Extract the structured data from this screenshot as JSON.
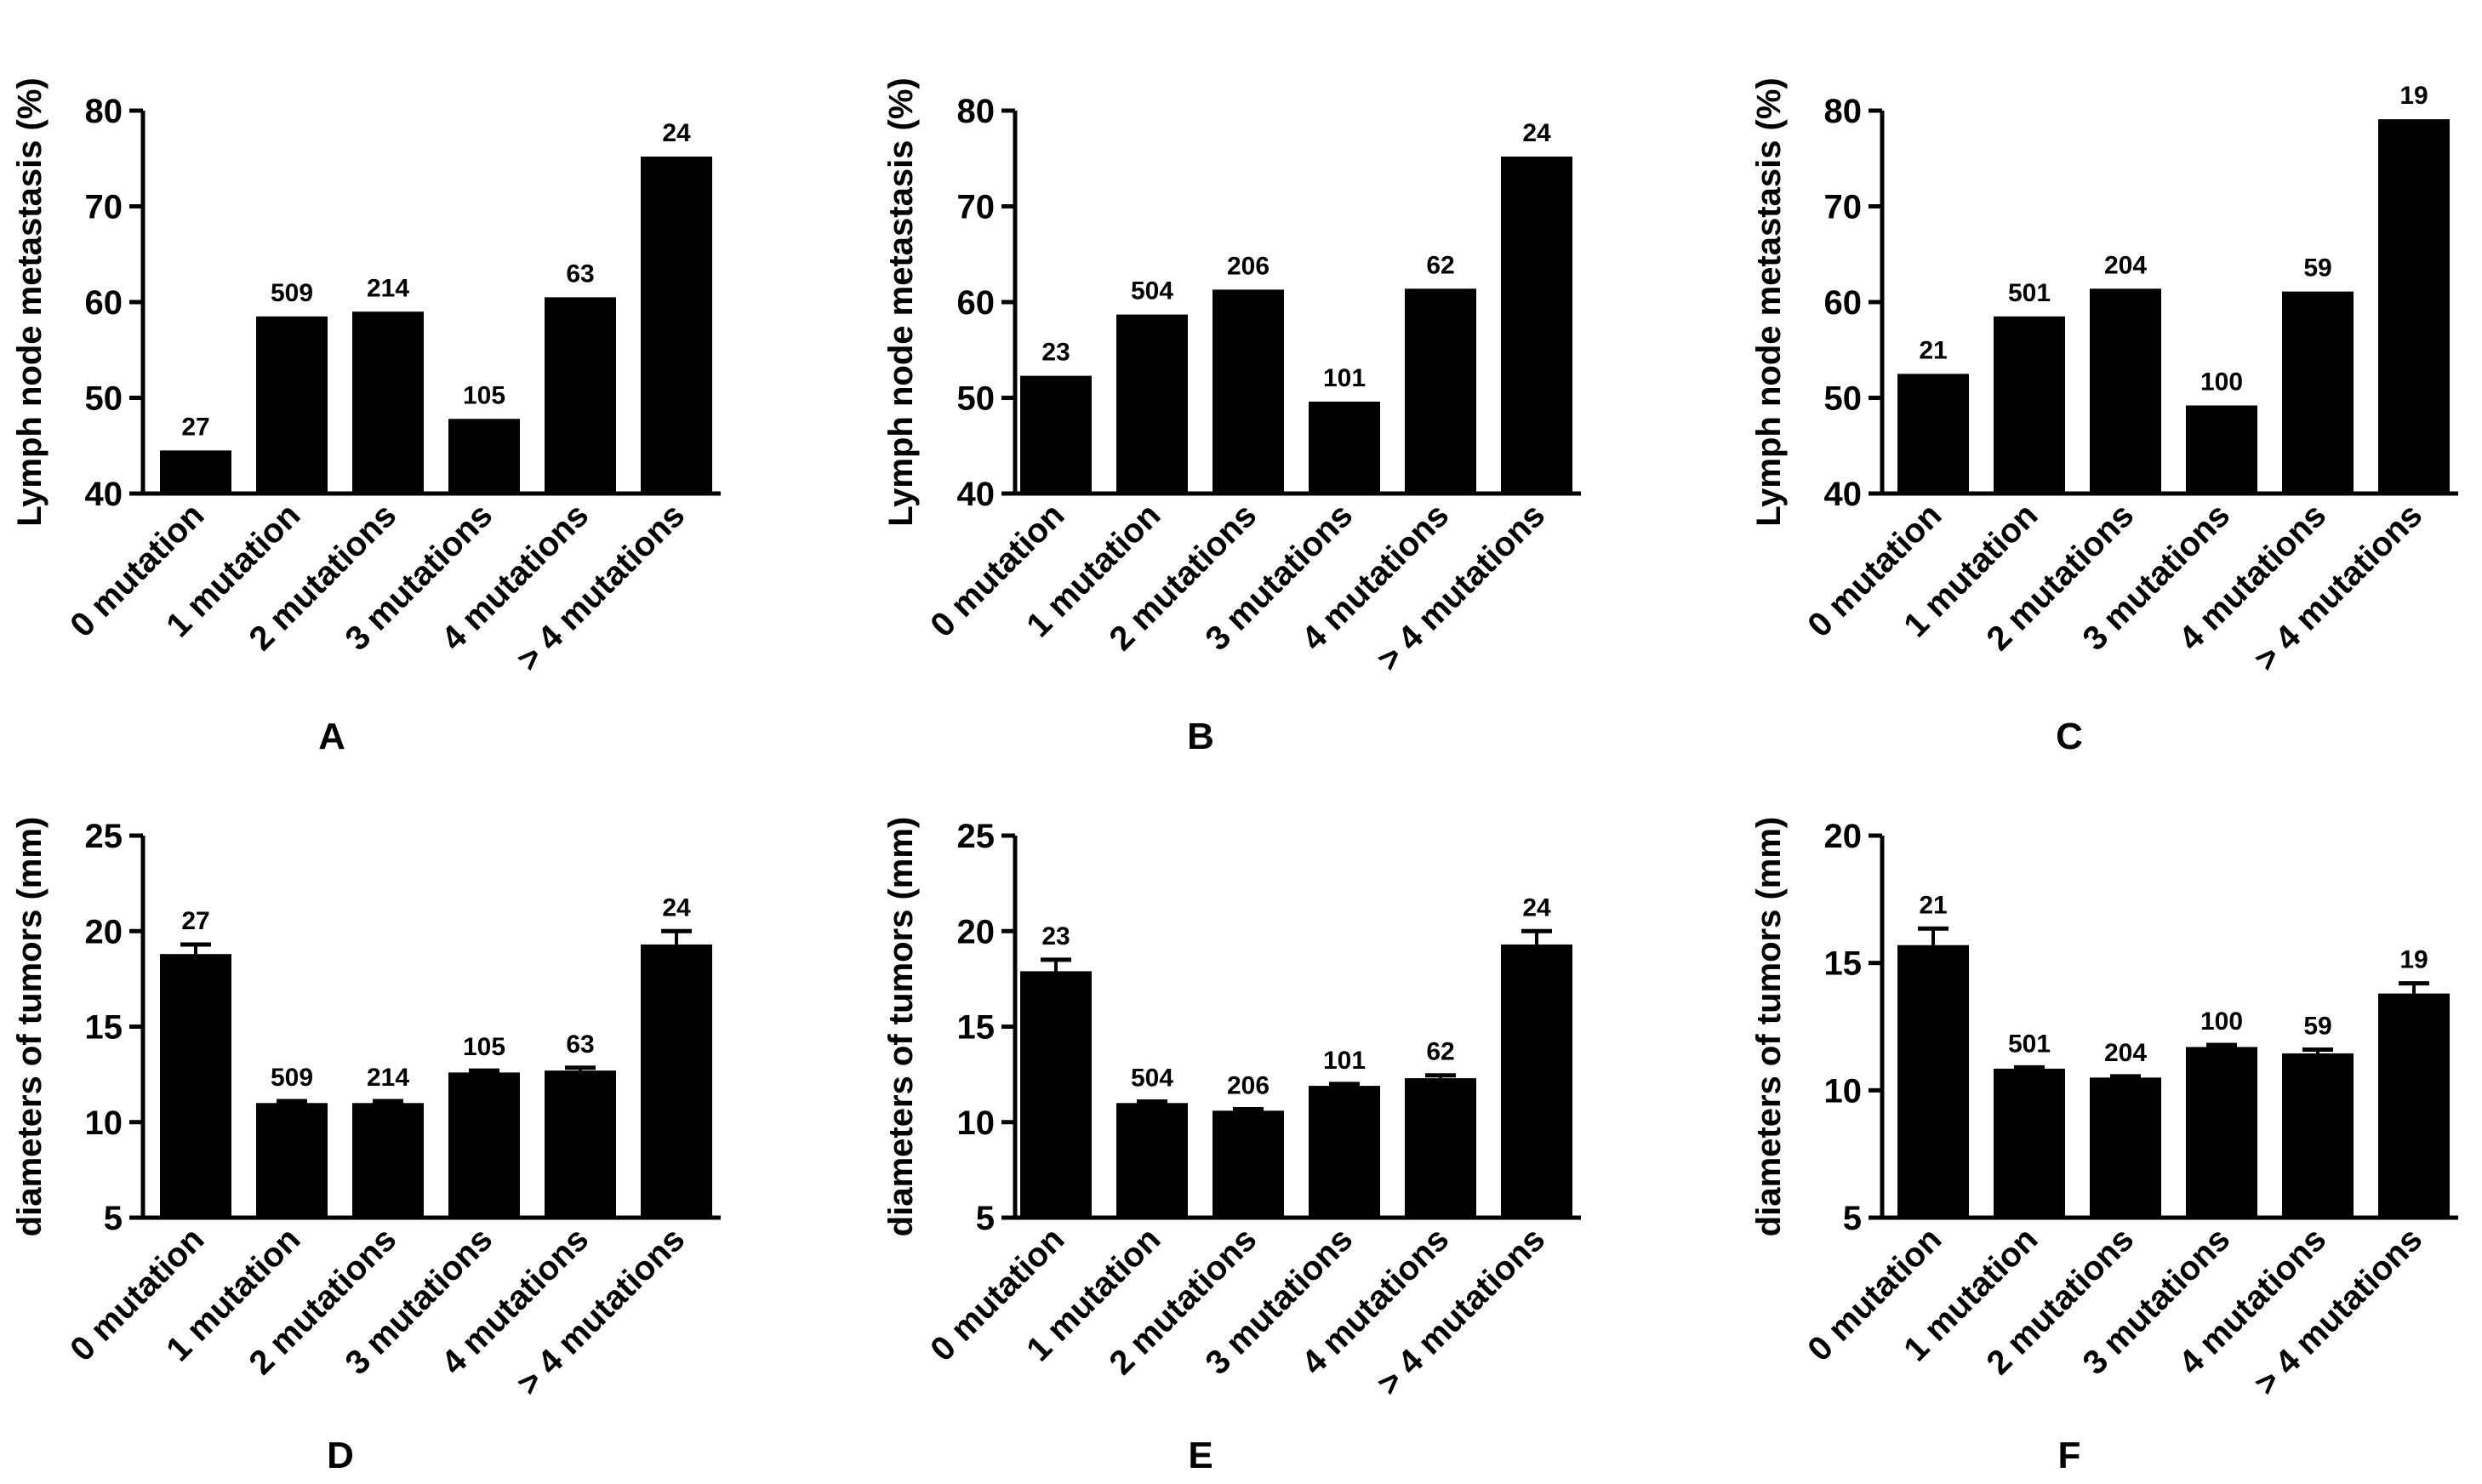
{
  "chart_data": [
    {
      "panel": "A",
      "type": "bar",
      "ylabel": "Lymph node metastasis (%)",
      "ylim": [
        40,
        80
      ],
      "yticks": [
        40,
        50,
        60,
        70,
        80
      ],
      "categories": [
        "0 mutation",
        "1 mutation",
        "2 mutations",
        "3 mutations",
        "4 mutations",
        "> 4 mutations"
      ],
      "values": [
        44.5,
        58.5,
        59.0,
        47.8,
        60.5,
        75.2
      ],
      "labels": [
        "27",
        "509",
        "214",
        "105",
        "63",
        "24"
      ]
    },
    {
      "panel": "B",
      "type": "bar",
      "ylabel": "Lymph node metastasis (%)",
      "ylim": [
        40,
        80
      ],
      "yticks": [
        40,
        50,
        60,
        70,
        80
      ],
      "categories": [
        "0 mutation",
        "1 mutation",
        "2 mutations",
        "3 mutations",
        "4 mutations",
        "> 4 mutations"
      ],
      "values": [
        52.3,
        58.7,
        61.3,
        49.6,
        61.4,
        75.2
      ],
      "labels": [
        "23",
        "504",
        "206",
        "101",
        "62",
        "24"
      ]
    },
    {
      "panel": "C",
      "type": "bar",
      "ylabel": "Lymph node metastasis (%)",
      "ylim": [
        40,
        80
      ],
      "yticks": [
        40,
        50,
        60,
        70,
        80
      ],
      "categories": [
        "0 mutation",
        "1 mutation",
        "2 mutations",
        "3 mutations",
        "4 mutations",
        "> 4 mutations"
      ],
      "values": [
        52.5,
        58.5,
        61.4,
        49.2,
        61.1,
        79.1
      ],
      "labels": [
        "21",
        "501",
        "204",
        "100",
        "59",
        "19"
      ]
    },
    {
      "panel": "D",
      "type": "bar",
      "ylabel": "diameters  of tumors (mm)",
      "ylim": [
        5,
        25
      ],
      "yticks": [
        5,
        10,
        15,
        20,
        25
      ],
      "categories": [
        "0 mutation",
        "1 mutation",
        "2 mutations",
        "3 mutations",
        "4 mutations",
        "> 4 mutations"
      ],
      "values": [
        18.8,
        11.0,
        11.0,
        12.6,
        12.7,
        19.3
      ],
      "errors": [
        0.5,
        0.1,
        0.1,
        0.1,
        0.15,
        0.7
      ],
      "labels": [
        "27",
        "509",
        "214",
        "105",
        "63",
        "24"
      ]
    },
    {
      "panel": "E",
      "type": "bar",
      "ylabel": "diameters  of tumors (mm)",
      "ylim": [
        5,
        25
      ],
      "yticks": [
        5,
        10,
        15,
        20,
        25
      ],
      "categories": [
        "0 mutation",
        "1 mutation",
        "2 mutations",
        "3 mutations",
        "4 mutations",
        "> 4 mutations"
      ],
      "values": [
        17.9,
        11.0,
        10.6,
        11.9,
        12.3,
        19.3
      ],
      "errors": [
        0.6,
        0.08,
        0.08,
        0.1,
        0.15,
        0.7
      ],
      "labels": [
        "23",
        "504",
        "206",
        "101",
        "62",
        "24"
      ]
    },
    {
      "panel": "F",
      "type": "bar",
      "ylabel": "diameters  of tumors (mm)",
      "ylim": [
        5,
        20
      ],
      "yticks": [
        5,
        10,
        15,
        20
      ],
      "categories": [
        "0 mutation",
        "1 mutation",
        "2 mutations",
        "3 mutations",
        "4 mutations",
        "> 4 mutations"
      ],
      "values": [
        15.7,
        10.85,
        10.5,
        11.7,
        11.45,
        13.8
      ],
      "errors": [
        0.65,
        0.05,
        0.05,
        0.08,
        0.15,
        0.4
      ],
      "labels": [
        "21",
        "501",
        "204",
        "100",
        "59",
        "19"
      ]
    }
  ]
}
